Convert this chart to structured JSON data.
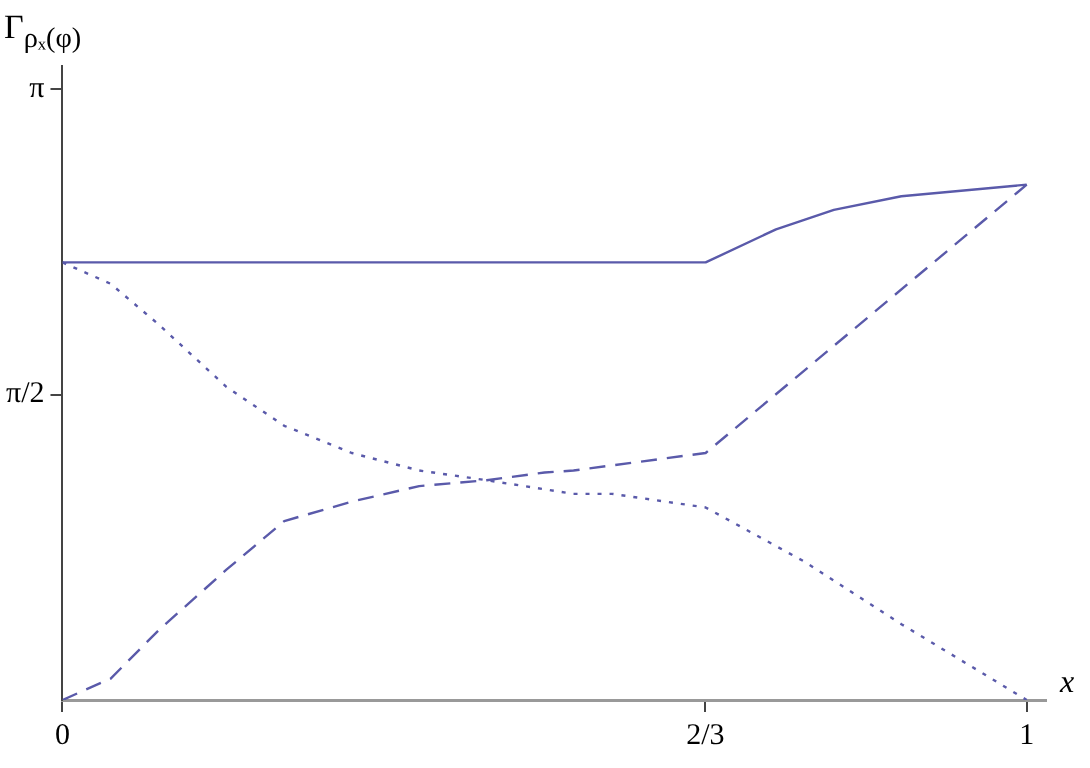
{
  "chart_data": {
    "type": "line",
    "ylabel": "Γ$_{ρₓ(φ)}$",
    "xlabel": "x",
    "xlim": [
      0,
      1.02
    ],
    "ylim": [
      0,
      3.26
    ],
    "xticks": [
      0,
      {
        "value": 0.6667,
        "label": "2/3"
      },
      1
    ],
    "yticks": [
      {
        "value": 1.5708,
        "label": "π/2"
      },
      {
        "value": 3.1416,
        "label": "π"
      }
    ],
    "grid": false,
    "legend": false,
    "marker": "none",
    "series": [
      {
        "color": "#5a5aaa",
        "line_style": "solid",
        "x": [
          0,
          0.667,
          0.74,
          0.8,
          0.87,
          1
        ],
        "values": [
          2.25,
          2.25,
          2.42,
          2.52,
          2.59,
          2.65
        ]
      },
      {
        "color": "#5a5aaa",
        "line_style": "dashed",
        "x": [
          0,
          0.05,
          0.1,
          0.17,
          0.23,
          0.3,
          0.37,
          0.44,
          0.5,
          0.53,
          0.667,
          1
        ],
        "values": [
          0,
          0.11,
          0.36,
          0.67,
          0.92,
          1.02,
          1.1,
          1.13,
          1.17,
          1.18,
          1.27,
          2.65
        ]
      },
      {
        "color": "#5a5aaa",
        "line_style": "dotted",
        "x": [
          0,
          0.05,
          0.1,
          0.17,
          0.23,
          0.3,
          0.37,
          0.44,
          0.53,
          0.57,
          0.667,
          0.77,
          0.87,
          1
        ],
        "values": [
          2.25,
          2.14,
          1.93,
          1.61,
          1.41,
          1.27,
          1.18,
          1.13,
          1.06,
          1.06,
          0.99,
          0.71,
          0.39,
          0
        ]
      }
    ]
  }
}
